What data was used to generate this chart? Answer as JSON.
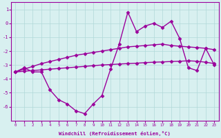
{
  "x": [
    0,
    1,
    2,
    3,
    4,
    5,
    6,
    7,
    8,
    9,
    10,
    11,
    12,
    13,
    14,
    15,
    16,
    17,
    18,
    19,
    20,
    21,
    22,
    23
  ],
  "line1": [
    -3.5,
    -3.2,
    -3.5,
    -3.5,
    -4.8,
    -5.5,
    -5.8,
    -6.3,
    -6.5,
    -5.8,
    -5.2,
    -3.3,
    -1.5,
    0.8,
    -0.6,
    -0.2,
    0.0,
    -0.3,
    0.15,
    -1.1,
    -3.2,
    -3.4,
    -1.8,
    -3.0
  ],
  "line2": [
    -3.5,
    -3.3,
    -3.1,
    -2.9,
    -2.75,
    -2.6,
    -2.45,
    -2.3,
    -2.2,
    -2.1,
    -2.0,
    -1.9,
    -1.8,
    -1.7,
    -1.65,
    -1.6,
    -1.55,
    -1.5,
    -1.6,
    -1.65,
    -1.7,
    -1.75,
    -1.8,
    -1.9
  ],
  "line3": [
    -3.5,
    -3.45,
    -3.4,
    -3.35,
    -3.3,
    -3.25,
    -3.2,
    -3.15,
    -3.1,
    -3.05,
    -3.0,
    -2.97,
    -2.93,
    -2.9,
    -2.87,
    -2.83,
    -2.8,
    -2.78,
    -2.75,
    -2.73,
    -2.7,
    -2.73,
    -2.8,
    -2.9
  ],
  "color": "#9b009b",
  "bg_color": "#d8f0f0",
  "grid_color": "#b0d8d8",
  "xlabel": "Windchill (Refroidissement éolien,°C)",
  "ylim": [
    -7.0,
    1.5
  ],
  "yticks": [
    1,
    0,
    -1,
    -2,
    -3,
    -4,
    -5,
    -6
  ],
  "xticks": [
    0,
    1,
    2,
    3,
    4,
    5,
    6,
    7,
    8,
    9,
    10,
    11,
    12,
    13,
    14,
    15,
    16,
    17,
    18,
    19,
    20,
    21,
    22,
    23
  ],
  "marker": "D",
  "markersize": 2.5,
  "linewidth": 1.0
}
